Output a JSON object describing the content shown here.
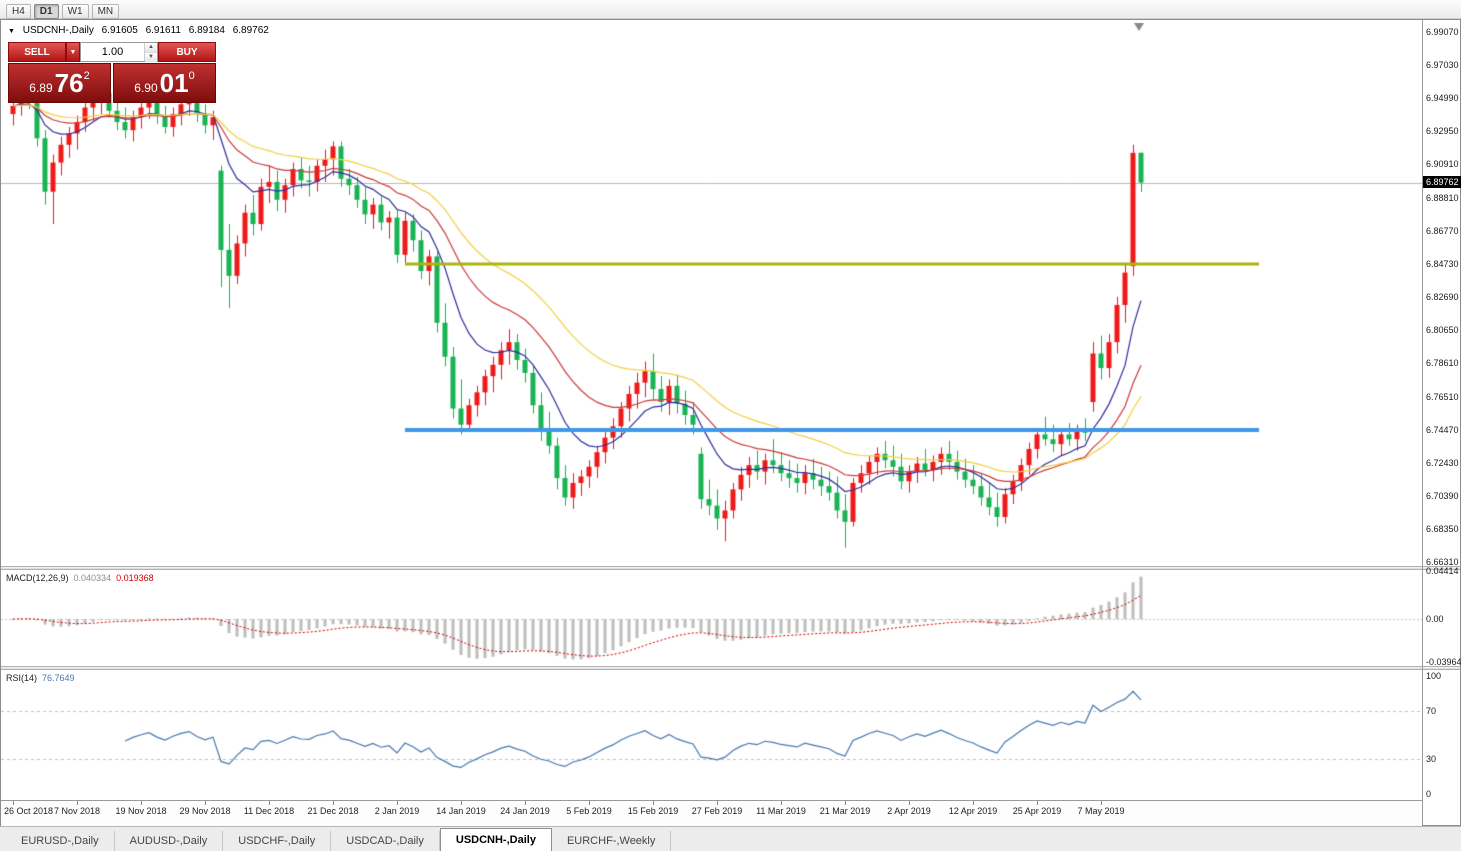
{
  "toolbar": {
    "timeframes": [
      "H4",
      "D1",
      "W1",
      "MN"
    ],
    "active_timeframe": "D1"
  },
  "chart": {
    "symbol_header": {
      "title": "USDCNH-,Daily",
      "open": "6.91605",
      "high": "6.91611",
      "low": "6.89184",
      "close": "6.89762"
    },
    "one_click": {
      "sell_label": "SELL",
      "buy_label": "BUY",
      "volume": "1.00",
      "sell_price": {
        "main": "6.89",
        "big": "76",
        "sup": "2"
      },
      "buy_price": {
        "main": "6.90",
        "big": "01",
        "sup": "0"
      }
    },
    "price_scale": {
      "labels": [
        "6.99070",
        "6.97030",
        "6.94990",
        "6.92950",
        "6.90910",
        "6.88810",
        "6.86770",
        "6.84730",
        "6.82690",
        "6.80650",
        "6.78610",
        "6.76510",
        "6.74470",
        "6.72430",
        "6.70390",
        "6.68350",
        "6.66310"
      ],
      "current_price": "6.89762"
    }
  },
  "chart_data": {
    "type": "candlestick",
    "symbol": "USDCNH",
    "timeframe": "Daily",
    "title": "USDCNH-,Daily",
    "x_axis": {
      "tick_labels": [
        "26 Oct 2018",
        "7 Nov 2018",
        "19 Nov 2018",
        "29 Nov 2018",
        "11 Dec 2018",
        "21 Dec 2018",
        "2 Jan 2019",
        "14 Jan 2019",
        "24 Jan 2019",
        "5 Feb 2019",
        "15 Feb 2019",
        "27 Feb 2019",
        "11 Mar 2019",
        "21 Mar 2019",
        "2 Apr 2019",
        "12 Apr 2019",
        "25 Apr 2019",
        "7 May 2019"
      ],
      "tick_candle_indices": [
        0,
        8,
        16,
        24,
        32,
        40,
        48,
        56,
        64,
        72,
        80,
        88,
        96,
        104,
        112,
        120,
        128,
        136
      ]
    },
    "y_axis": {
      "visible_range": [
        6.6607,
        6.9981
      ],
      "grid": false
    },
    "candles": [
      [
        6.94,
        6.948,
        6.933,
        6.945
      ],
      [
        6.945,
        6.953,
        6.939,
        6.95
      ],
      [
        6.95,
        6.954,
        6.943,
        6.948
      ],
      [
        6.948,
        6.954,
        6.92,
        6.925
      ],
      [
        6.925,
        6.93,
        6.884,
        6.892
      ],
      [
        6.892,
        6.915,
        6.872,
        6.91
      ],
      [
        6.91,
        6.926,
        6.902,
        6.921
      ],
      [
        6.921,
        6.932,
        6.913,
        6.928
      ],
      [
        6.928,
        6.939,
        6.918,
        6.935
      ],
      [
        6.935,
        6.948,
        6.929,
        6.944
      ],
      [
        6.944,
        6.953,
        6.936,
        6.95
      ],
      [
        6.95,
        6.9545,
        6.94,
        6.953
      ],
      [
        6.953,
        6.955,
        6.938,
        6.942
      ],
      [
        6.942,
        6.95,
        6.93,
        6.935
      ],
      [
        6.935,
        6.944,
        6.925,
        6.93
      ],
      [
        6.93,
        6.942,
        6.923,
        6.938
      ],
      [
        6.938,
        6.948,
        6.931,
        6.944
      ],
      [
        6.944,
        6.953,
        6.937,
        6.949
      ],
      [
        6.949,
        6.953,
        6.934,
        6.939
      ],
      [
        6.939,
        6.945,
        6.928,
        6.932
      ],
      [
        6.932,
        6.944,
        6.926,
        6.94
      ],
      [
        6.94,
        6.95,
        6.933,
        6.946
      ],
      [
        6.946,
        6.953,
        6.939,
        6.95
      ],
      [
        6.95,
        6.953,
        6.935,
        6.94
      ],
      [
        6.94,
        6.946,
        6.928,
        6.933
      ],
      [
        6.933,
        6.942,
        6.924,
        6.938
      ],
      [
        6.905,
        6.908,
        6.833,
        6.856
      ],
      [
        6.856,
        6.872,
        6.82,
        6.84
      ],
      [
        6.84,
        6.865,
        6.835,
        6.86
      ],
      [
        6.86,
        6.884,
        6.852,
        6.879
      ],
      [
        6.879,
        6.89,
        6.865,
        6.872
      ],
      [
        6.872,
        6.9,
        6.868,
        6.895
      ],
      [
        6.895,
        6.908,
        6.885,
        6.898
      ],
      [
        6.898,
        6.905,
        6.88,
        6.887
      ],
      [
        6.887,
        6.9,
        6.879,
        6.896
      ],
      [
        6.896,
        6.91,
        6.889,
        6.906
      ],
      [
        6.906,
        6.913,
        6.894,
        6.899
      ],
      [
        6.899,
        6.908,
        6.889,
        6.898
      ],
      [
        6.898,
        6.912,
        6.892,
        6.908
      ],
      [
        6.908,
        6.918,
        6.898,
        6.912
      ],
      [
        6.912,
        6.923,
        6.902,
        6.92
      ],
      [
        6.92,
        6.923,
        6.895,
        6.9
      ],
      [
        6.9,
        6.906,
        6.89,
        6.896
      ],
      [
        6.896,
        6.901,
        6.882,
        6.887
      ],
      [
        6.887,
        6.895,
        6.872,
        6.878
      ],
      [
        6.878,
        6.888,
        6.869,
        6.884
      ],
      [
        6.884,
        6.889,
        6.868,
        6.873
      ],
      [
        6.873,
        6.88,
        6.863,
        6.876
      ],
      [
        6.876,
        6.881,
        6.848,
        6.853
      ],
      [
        6.853,
        6.879,
        6.847,
        6.874
      ],
      [
        6.874,
        6.878,
        6.855,
        6.862
      ],
      [
        6.862,
        6.868,
        6.838,
        6.843
      ],
      [
        6.843,
        6.856,
        6.834,
        6.852
      ],
      [
        6.852,
        6.855,
        6.805,
        6.811
      ],
      [
        6.811,
        6.823,
        6.784,
        6.79
      ],
      [
        6.79,
        6.796,
        6.752,
        6.758
      ],
      [
        6.758,
        6.776,
        6.742,
        6.748
      ],
      [
        6.748,
        6.764,
        6.744,
        6.76
      ],
      [
        6.76,
        6.772,
        6.753,
        6.768
      ],
      [
        6.768,
        6.782,
        6.76,
        6.778
      ],
      [
        6.778,
        6.79,
        6.768,
        6.785
      ],
      [
        6.785,
        6.799,
        6.776,
        6.794
      ],
      [
        6.794,
        6.807,
        6.785,
        6.799
      ],
      [
        6.799,
        6.804,
        6.782,
        6.788
      ],
      [
        6.788,
        6.795,
        6.774,
        6.78
      ],
      [
        6.78,
        6.785,
        6.755,
        6.76
      ],
      [
        6.76,
        6.768,
        6.738,
        6.744
      ],
      [
        6.744,
        6.756,
        6.73,
        6.735
      ],
      [
        6.735,
        6.74,
        6.708,
        6.715
      ],
      [
        6.715,
        6.723,
        6.698,
        6.703
      ],
      [
        6.703,
        6.718,
        6.696,
        6.712
      ],
      [
        6.712,
        6.72,
        6.704,
        6.716
      ],
      [
        6.716,
        6.726,
        6.709,
        6.722
      ],
      [
        6.722,
        6.735,
        6.715,
        6.731
      ],
      [
        6.731,
        6.745,
        6.724,
        6.74
      ],
      [
        6.74,
        6.752,
        6.733,
        6.747
      ],
      [
        6.747,
        6.762,
        6.74,
        6.758
      ],
      [
        6.758,
        6.772,
        6.75,
        6.767
      ],
      [
        6.767,
        6.78,
        6.758,
        6.774
      ],
      [
        6.774,
        6.787,
        6.765,
        6.781
      ],
      [
        6.781,
        6.792,
        6.764,
        6.77
      ],
      [
        6.77,
        6.778,
        6.756,
        6.762
      ],
      [
        6.762,
        6.776,
        6.754,
        6.772
      ],
      [
        6.772,
        6.779,
        6.755,
        6.761
      ],
      [
        6.761,
        6.769,
        6.748,
        6.754
      ],
      [
        6.754,
        6.762,
        6.742,
        6.748
      ],
      [
        6.73,
        6.734,
        6.696,
        6.702
      ],
      [
        6.702,
        6.714,
        6.692,
        6.698
      ],
      [
        6.698,
        6.708,
        6.683,
        6.69
      ],
      [
        6.69,
        6.701,
        6.676,
        6.695
      ],
      [
        6.695,
        6.712,
        6.69,
        6.708
      ],
      [
        6.708,
        6.722,
        6.701,
        6.717
      ],
      [
        6.717,
        6.728,
        6.709,
        6.723
      ],
      [
        6.723,
        6.732,
        6.714,
        6.719
      ],
      [
        6.719,
        6.73,
        6.711,
        6.726
      ],
      [
        6.726,
        6.739,
        6.718,
        6.723
      ],
      [
        6.723,
        6.731,
        6.713,
        6.718
      ],
      [
        6.718,
        6.726,
        6.709,
        6.715
      ],
      [
        6.715,
        6.724,
        6.706,
        6.712
      ],
      [
        6.712,
        6.723,
        6.705,
        6.718
      ],
      [
        6.718,
        6.727,
        6.708,
        6.714
      ],
      [
        6.714,
        6.722,
        6.704,
        6.71
      ],
      [
        6.71,
        6.719,
        6.701,
        6.706
      ],
      [
        6.706,
        6.716,
        6.69,
        6.695
      ],
      [
        6.695,
        6.705,
        6.672,
        6.688
      ],
      [
        6.688,
        6.715,
        6.685,
        6.712
      ],
      [
        6.712,
        6.723,
        6.706,
        6.718
      ],
      [
        6.718,
        6.729,
        6.711,
        6.725
      ],
      [
        6.725,
        6.734,
        6.717,
        6.73
      ],
      [
        6.73,
        6.738,
        6.721,
        6.726
      ],
      [
        6.726,
        6.735,
        6.716,
        6.722
      ],
      [
        6.722,
        6.73,
        6.708,
        6.713
      ],
      [
        6.713,
        6.723,
        6.706,
        6.719
      ],
      [
        6.719,
        6.728,
        6.712,
        6.724
      ],
      [
        6.724,
        6.733,
        6.716,
        6.72
      ],
      [
        6.72,
        6.729,
        6.713,
        6.725
      ],
      [
        6.725,
        6.734,
        6.717,
        6.73
      ],
      [
        6.73,
        6.738,
        6.72,
        6.725
      ],
      [
        6.725,
        6.732,
        6.714,
        6.719
      ],
      [
        6.719,
        6.727,
        6.709,
        6.714
      ],
      [
        6.714,
        6.723,
        6.705,
        6.71
      ],
      [
        6.71,
        6.718,
        6.698,
        6.703
      ],
      [
        6.703,
        6.712,
        6.692,
        6.697
      ],
      [
        6.697,
        6.706,
        6.685,
        6.691
      ],
      [
        6.691,
        6.709,
        6.687,
        6.705
      ],
      [
        6.705,
        6.717,
        6.699,
        6.713
      ],
      [
        6.713,
        6.727,
        6.707,
        6.723
      ],
      [
        6.723,
        6.737,
        6.717,
        6.733
      ],
      [
        6.733,
        6.746,
        6.727,
        6.742
      ],
      [
        6.742,
        6.753,
        6.735,
        6.739
      ],
      [
        6.739,
        6.748,
        6.731,
        6.736
      ],
      [
        6.736,
        6.745,
        6.729,
        6.742
      ],
      [
        6.742,
        6.749,
        6.735,
        6.739
      ],
      [
        6.739,
        6.748,
        6.732,
        6.745
      ],
      [
        6.745,
        6.752,
        6.738,
        6.743
      ],
      [
        6.762,
        6.799,
        6.756,
        6.792
      ],
      [
        6.792,
        6.803,
        6.776,
        6.783
      ],
      [
        6.783,
        6.804,
        6.777,
        6.799
      ],
      [
        6.799,
        6.827,
        6.792,
        6.822
      ],
      [
        6.822,
        6.848,
        6.811,
        6.842
      ],
      [
        6.846,
        6.921,
        6.84,
        6.916
      ],
      [
        6.91605,
        6.91611,
        6.89184,
        6.89762
      ]
    ],
    "moving_averages": [
      {
        "type": "ema",
        "period": 10,
        "color": "#2f2f9e"
      },
      {
        "type": "ema",
        "period": 21,
        "color": "#cc3b3b"
      },
      {
        "type": "ema",
        "period": 34,
        "color": "#f2d043"
      }
    ],
    "horizontal_lines": [
      {
        "id": "resistance-line",
        "price": 6.8473,
        "color": "#a9b511",
        "thickness": 3
      },
      {
        "id": "support-line",
        "price": 6.7447,
        "color": "#3e97e8",
        "thickness": 4
      }
    ],
    "current_price": 6.89762,
    "colors": {
      "up": "#ee1a1a",
      "down": "#18b352",
      "background": "#ffffff",
      "current_price_line": "#b9b9b9"
    }
  },
  "macd": {
    "label": "MACD(12,26,9)",
    "value_main": "0.040334",
    "value_signal": "0.019368",
    "scale_labels": [
      "0.04414",
      "0.00",
      "-0.03964"
    ],
    "params": {
      "fast": 12,
      "slow": 26,
      "signal": 9
    },
    "colors": {
      "histogram": "#bdbdbd",
      "signal": "#d40000"
    }
  },
  "rsi": {
    "label": "RSI(14)",
    "value": "76.7649",
    "scale_labels": [
      "100",
      "70",
      "30",
      "0"
    ],
    "period": 14,
    "levels": [
      70,
      30
    ],
    "color": "#4779ad"
  },
  "tabs": {
    "items": [
      "EURUSD-,Daily",
      "AUDUSD-,Daily",
      "USDCHF-,Daily",
      "USDCAD-,Daily",
      "USDCNH-,Daily",
      "EURCHF-,Weekly"
    ],
    "active": "USDCNH-,Daily"
  },
  "icons": {
    "collapse": "▼",
    "dropdown": "▼",
    "spin_up": "▲",
    "spin_down": "▼"
  }
}
